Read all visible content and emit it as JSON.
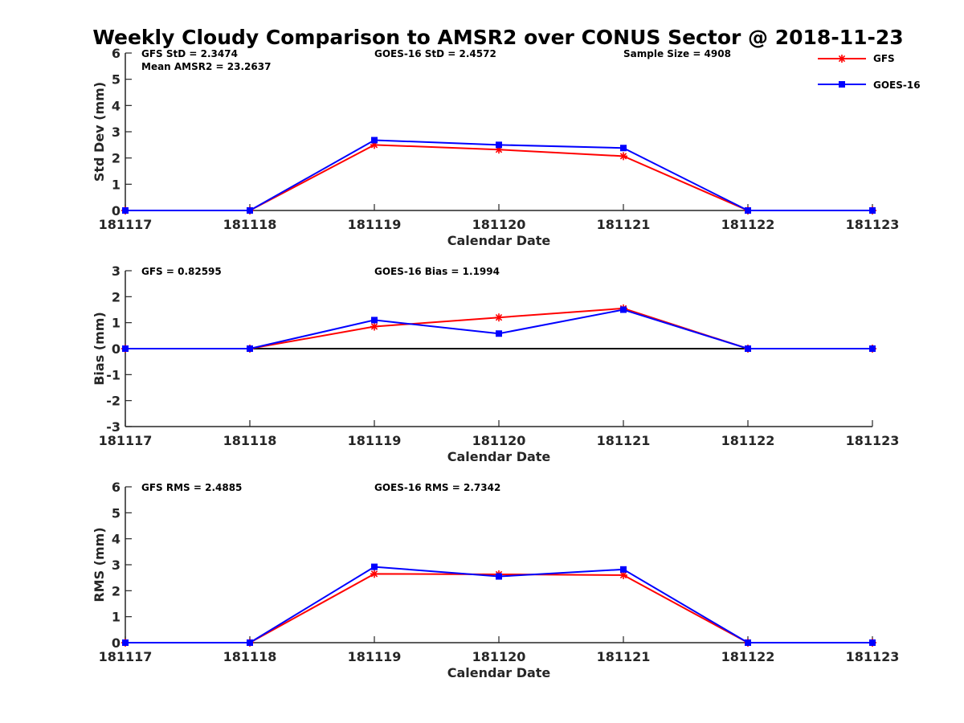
{
  "title": "Weekly Cloudy Comparison to AMSR2 over CONUS Sector @ 2018-11-23",
  "legend": [
    {
      "label": "GFS",
      "color": "#ff0000",
      "marker": "asterisk"
    },
    {
      "label": "GOES-16",
      "color": "#0000ff",
      "marker": "square"
    }
  ],
  "chart_data": [
    {
      "type": "line",
      "name": "std",
      "xlabel": "Calendar Date",
      "ylabel": "Std Dev (mm)",
      "categories": [
        "181117",
        "181118",
        "181119",
        "181120",
        "181121",
        "181122",
        "181123"
      ],
      "ylim": [
        0,
        6
      ],
      "yticks": [
        0,
        1,
        2,
        3,
        4,
        5,
        6
      ],
      "zero_line": false,
      "annotations": [
        {
          "text": "GFS StD = 2.3474",
          "slot": "left-line1"
        },
        {
          "text": "Mean AMSR2 = 23.2637",
          "slot": "left-line2"
        },
        {
          "text": "GOES-16 StD = 2.4572",
          "slot": "center"
        },
        {
          "text": "Sample Size = 4908",
          "slot": "right"
        }
      ],
      "series": [
        {
          "name": "GFS",
          "values": [
            0,
            0,
            2.5,
            2.32,
            2.07,
            0,
            0
          ]
        },
        {
          "name": "GOES-16",
          "values": [
            0,
            0,
            2.68,
            2.5,
            2.38,
            0,
            0
          ]
        }
      ]
    },
    {
      "type": "line",
      "name": "bias",
      "xlabel": "Calendar Date",
      "ylabel": "Bias (mm)",
      "categories": [
        "181117",
        "181118",
        "181119",
        "181120",
        "181121",
        "181122",
        "181123"
      ],
      "ylim": [
        -3,
        3
      ],
      "yticks": [
        -3,
        -2,
        -1,
        0,
        1,
        2,
        3
      ],
      "zero_line": true,
      "annotations": [
        {
          "text": "GFS = 0.82595",
          "slot": "left-line1"
        },
        {
          "text": "GOES-16 Bias  = 1.1994",
          "slot": "center"
        }
      ],
      "series": [
        {
          "name": "GFS",
          "values": [
            0,
            0,
            0.85,
            1.2,
            1.55,
            0,
            0
          ]
        },
        {
          "name": "GOES-16",
          "values": [
            0,
            0,
            1.1,
            0.58,
            1.5,
            0,
            0
          ]
        }
      ]
    },
    {
      "type": "line",
      "name": "rms",
      "xlabel": "Calendar Date",
      "ylabel": "RMS (mm)",
      "categories": [
        "181117",
        "181118",
        "181119",
        "181120",
        "181121",
        "181122",
        "181123"
      ],
      "ylim": [
        0,
        6
      ],
      "yticks": [
        0,
        1,
        2,
        3,
        4,
        5,
        6
      ],
      "zero_line": false,
      "annotations": [
        {
          "text": "GFS RMS = 2.4885",
          "slot": "left-line1"
        },
        {
          "text": "GOES-16 RMS = 2.7342",
          "slot": "center"
        }
      ],
      "series": [
        {
          "name": "GFS",
          "values": [
            0,
            0,
            2.65,
            2.63,
            2.6,
            0,
            0
          ]
        },
        {
          "name": "GOES-16",
          "values": [
            0,
            0,
            2.92,
            2.55,
            2.82,
            0,
            0
          ]
        }
      ]
    }
  ]
}
